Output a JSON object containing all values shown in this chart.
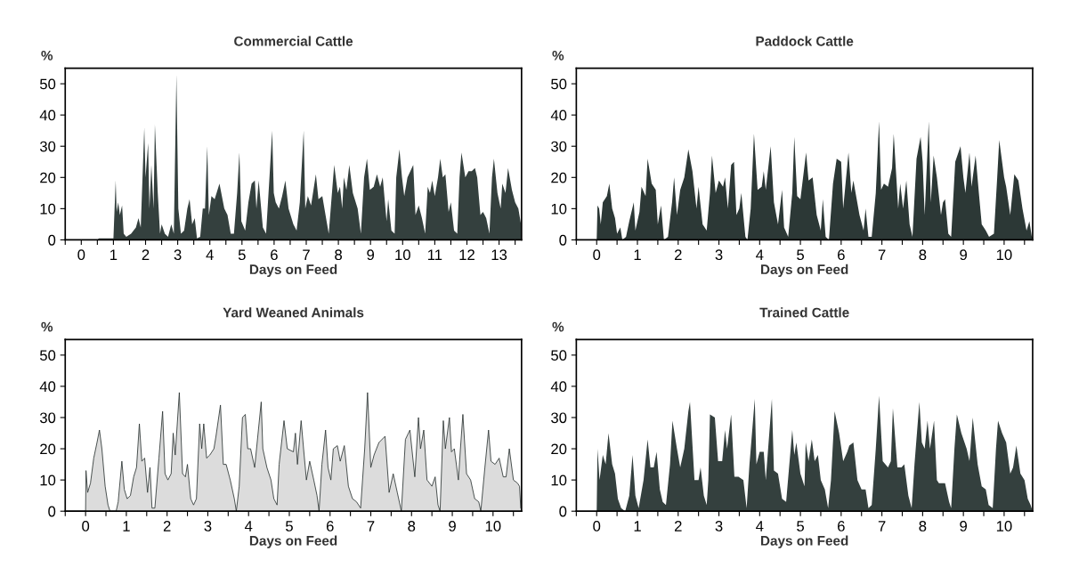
{
  "chart_data": [
    {
      "type": "area",
      "title": "Commercial Cattle",
      "xlabel": "Days on Feed",
      "ylabel": "%",
      "xlim": [
        -0.5,
        13.7
      ],
      "ylim": [
        0,
        55
      ],
      "yticks": [
        0,
        10,
        20,
        30,
        40,
        50
      ],
      "xticks": [
        {
          "value": -0.5,
          "label": null
        },
        0,
        {
          "value": 0.5,
          "label": null
        },
        1,
        {
          "value": 1.5,
          "label": null
        },
        2,
        {
          "value": 2.5,
          "label": null
        },
        3,
        {
          "value": 3.5,
          "label": null
        },
        4,
        {
          "value": 4.5,
          "label": null
        },
        5,
        {
          "value": 5.5,
          "label": null
        },
        6,
        {
          "value": 6.5,
          "label": null
        },
        7,
        {
          "value": 7.5,
          "label": null
        },
        8,
        {
          "value": 8.5,
          "label": null
        },
        9,
        {
          "value": 9.5,
          "label": null
        },
        10,
        {
          "value": 10.5,
          "label": null
        },
        11,
        {
          "value": 11.5,
          "label": null
        },
        12,
        {
          "value": 12.5,
          "label": null
        },
        13,
        {
          "value": 13.5,
          "label": null
        }
      ],
      "series": [
        {
          "color": "#34403e",
          "x": [
            -0.5,
            0.5,
            0.55,
            1.0,
            1.07,
            1.1,
            1.15,
            1.2,
            1.27,
            1.32,
            1.4,
            1.55,
            1.7,
            1.78,
            1.85,
            1.96,
            2.0,
            2.08,
            2.12,
            2.18,
            2.25,
            2.29,
            2.38,
            2.45,
            2.5,
            2.6,
            2.7,
            2.8,
            2.88,
            2.96,
            3.02,
            3.1,
            3.2,
            3.3,
            3.37,
            3.45,
            3.53,
            3.6,
            3.7,
            3.78,
            3.85,
            3.92,
            3.97,
            4.05,
            4.15,
            4.3,
            4.45,
            4.55,
            4.65,
            4.75,
            4.85,
            4.92,
            4.98,
            5.1,
            5.2,
            5.3,
            5.4,
            5.45,
            5.52,
            5.65,
            5.75,
            5.85,
            5.94,
            5.99,
            6.05,
            6.15,
            6.25,
            6.35,
            6.45,
            6.6,
            6.7,
            6.8,
            6.92,
            6.97,
            7.05,
            7.15,
            7.3,
            7.38,
            7.5,
            7.65,
            7.7,
            7.8,
            7.87,
            7.98,
            8.05,
            8.12,
            8.17,
            8.25,
            8.34,
            8.45,
            8.6,
            8.7,
            8.8,
            8.89,
            8.98,
            9.1,
            9.2,
            9.3,
            9.38,
            9.5,
            9.55,
            9.65,
            9.75,
            9.8,
            9.9,
            9.98,
            10.05,
            10.15,
            10.33,
            10.4,
            10.5,
            10.6,
            10.7,
            10.78,
            10.85,
            10.92,
            11.0,
            11.1,
            11.17,
            11.25,
            11.33,
            11.43,
            11.5,
            11.6,
            11.7,
            11.77,
            11.83,
            11.95,
            12.05,
            12.15,
            12.25,
            12.32,
            12.42,
            12.5,
            12.6,
            12.7,
            12.78,
            12.84,
            12.95,
            13.05,
            13.1,
            13.2,
            13.28,
            13.4,
            13.5,
            13.6,
            13.7
          ],
          "values": [
            0,
            0,
            0.5,
            0.5,
            19,
            9,
            12,
            8,
            11,
            2,
            1,
            2,
            4,
            7,
            4,
            36,
            20,
            31,
            10,
            24,
            10,
            37,
            15,
            2,
            5,
            2,
            1,
            5,
            2,
            53,
            10,
            2,
            3,
            10,
            13,
            5,
            7,
            0.5,
            1,
            10,
            10,
            30,
            8,
            14,
            13,
            18,
            10,
            8,
            2,
            2,
            15,
            28,
            6,
            3,
            12,
            18,
            19,
            10,
            19,
            4,
            2,
            19,
            35,
            15,
            12,
            10,
            14,
            19,
            10,
            5,
            3,
            12,
            35,
            10,
            14,
            11,
            21,
            13,
            14,
            5,
            2,
            15,
            24,
            15,
            17,
            10,
            20,
            16,
            24,
            15,
            10,
            2,
            20,
            26,
            16,
            17,
            21,
            17,
            20,
            6,
            13,
            3,
            2,
            20,
            29,
            20,
            14,
            20,
            24,
            8,
            11,
            7,
            2,
            17,
            15,
            19,
            14,
            20,
            26,
            20,
            21,
            9,
            12,
            3,
            2,
            20,
            28,
            20,
            22,
            22,
            23,
            20,
            8,
            9,
            7,
            2,
            20,
            26,
            15,
            10,
            18,
            15,
            23,
            16,
            12,
            10,
            4
          ]
        }
      ]
    },
    {
      "type": "area",
      "title": "Paddock Cattle",
      "xlabel": "Days on Feed",
      "ylabel": "%",
      "xlim": [
        -0.5,
        10.7
      ],
      "ylim": [
        0,
        55
      ],
      "yticks": [
        0,
        10,
        20,
        30,
        40,
        50
      ],
      "xticks": [
        {
          "value": -0.5,
          "label": null
        },
        0,
        {
          "value": 0.5,
          "label": null
        },
        1,
        {
          "value": 1.5,
          "label": null
        },
        2,
        {
          "value": 2.5,
          "label": null
        },
        3,
        {
          "value": 3.5,
          "label": null
        },
        4,
        {
          "value": 4.5,
          "label": null
        },
        5,
        {
          "value": 5.5,
          "label": null
        },
        6,
        {
          "value": 6.5,
          "label": null
        },
        7,
        {
          "value": 7.5,
          "label": null
        },
        8,
        {
          "value": 8.5,
          "label": null
        },
        9,
        {
          "value": 9.5,
          "label": null
        },
        10,
        {
          "value": 10.5,
          "label": null
        }
      ],
      "series": [
        {
          "color": "#2c3836",
          "x": [
            -0.5,
            0,
            0.02,
            0.06,
            0.1,
            0.15,
            0.25,
            0.31,
            0.38,
            0.45,
            0.5,
            0.58,
            0.63,
            0.72,
            0.8,
            0.91,
            0.95,
            1.05,
            1.1,
            1.2,
            1.25,
            1.35,
            1.45,
            1.5,
            1.58,
            1.65,
            1.75,
            1.85,
            1.9,
            1.97,
            2.05,
            2.15,
            2.25,
            2.35,
            2.45,
            2.5,
            2.6,
            2.7,
            2.78,
            2.83,
            2.92,
            3.0,
            3.1,
            3.15,
            3.22,
            3.3,
            3.37,
            3.43,
            3.5,
            3.55,
            3.65,
            3.7,
            3.78,
            3.86,
            3.95,
            4.05,
            4.1,
            4.15,
            4.27,
            4.35,
            4.45,
            4.55,
            4.6,
            4.7,
            4.8,
            4.85,
            4.92,
            5.0,
            5.14,
            5.2,
            5.3,
            5.4,
            5.5,
            5.55,
            5.62,
            5.7,
            5.8,
            5.89,
            6.0,
            6.05,
            6.18,
            6.25,
            6.3,
            6.45,
            6.55,
            6.6,
            6.67,
            6.75,
            6.85,
            6.93,
            6.98,
            7.05,
            7.15,
            7.25,
            7.29,
            7.4,
            7.45,
            7.52,
            7.6,
            7.68,
            7.75,
            7.85,
            7.95,
            8.0,
            8.05,
            8.15,
            8.2,
            8.27,
            8.35,
            8.45,
            8.5,
            8.55,
            8.63,
            8.7,
            8.8,
            8.93,
            9.0,
            9.05,
            9.15,
            9.2,
            9.3,
            9.38,
            9.45,
            9.55,
            9.63,
            9.75,
            9.83,
            9.88,
            10.0,
            10.05,
            10.15,
            10.25,
            10.35,
            10.45,
            10.55,
            10.62,
            10.68,
            10.7
          ],
          "values": [
            0,
            0,
            11,
            10,
            5,
            12,
            14,
            18,
            10,
            7,
            2,
            4,
            0,
            1,
            6,
            12,
            3,
            9,
            17,
            14,
            26,
            18,
            16,
            5,
            11,
            0,
            1,
            12,
            20,
            8,
            16,
            20,
            29,
            22,
            10,
            17,
            5,
            3,
            15,
            27,
            15,
            19,
            17,
            20,
            10,
            24,
            25,
            8,
            10,
            15,
            1,
            0,
            10,
            34,
            16,
            17,
            22,
            16,
            30,
            12,
            5,
            16,
            4,
            1,
            15,
            33,
            14,
            13,
            28,
            19,
            20,
            8,
            3,
            13,
            1,
            0,
            18,
            26,
            25,
            10,
            28,
            15,
            19,
            8,
            3,
            10,
            1,
            1,
            15,
            38,
            16,
            18,
            17,
            23,
            34,
            10,
            18,
            10,
            19,
            5,
            1,
            26,
            33,
            25,
            8,
            38,
            12,
            27,
            20,
            8,
            12,
            13,
            2,
            1,
            25,
            30,
            20,
            15,
            28,
            17,
            27,
            15,
            5,
            3,
            1,
            2,
            20,
            32,
            20,
            17,
            8,
            21,
            19,
            10,
            3,
            6,
            1,
            1
          ]
        }
      ]
    },
    {
      "type": "area",
      "title": "Yard Weaned Animals",
      "xlabel": "Days on Feed",
      "ylabel": "%",
      "xlim": [
        -0.5,
        10.7
      ],
      "ylim": [
        0,
        55
      ],
      "yticks": [
        0,
        10,
        20,
        30,
        40,
        50
      ],
      "xticks": [
        {
          "value": -0.5,
          "label": null
        },
        0,
        {
          "value": 0.5,
          "label": null
        },
        1,
        {
          "value": 1.5,
          "label": null
        },
        2,
        {
          "value": 2.5,
          "label": null
        },
        3,
        {
          "value": 3.5,
          "label": null
        },
        4,
        {
          "value": 4.5,
          "label": null
        },
        5,
        {
          "value": 5.5,
          "label": null
        },
        6,
        {
          "value": 6.5,
          "label": null
        },
        7,
        {
          "value": 7.5,
          "label": null
        },
        8,
        {
          "value": 8.5,
          "label": null
        },
        9,
        {
          "value": 9.5,
          "label": null
        },
        10,
        {
          "value": 10.5,
          "label": null
        }
      ],
      "series": [
        {
          "color": "#dcdcdc",
          "x": [
            -0.5,
            0,
            0.01,
            0.05,
            0.12,
            0.2,
            0.28,
            0.34,
            0.4,
            0.48,
            0.55,
            0.6,
            0.75,
            0.8,
            0.89,
            0.95,
            1.02,
            1.1,
            1.18,
            1.25,
            1.32,
            1.38,
            1.45,
            1.52,
            1.58,
            1.63,
            1.7,
            1.8,
            1.89,
            1.95,
            2.02,
            2.1,
            2.15,
            2.2,
            2.3,
            2.38,
            2.45,
            2.5,
            2.58,
            2.65,
            2.72,
            2.8,
            2.85,
            2.9,
            2.97,
            3.05,
            3.15,
            3.2,
            3.31,
            3.38,
            3.45,
            3.55,
            3.65,
            3.7,
            3.77,
            3.85,
            3.92,
            3.98,
            4.05,
            4.15,
            4.31,
            4.35,
            4.45,
            4.55,
            4.62,
            4.7,
            4.75,
            4.87,
            4.95,
            5.1,
            5.15,
            5.2,
            5.29,
            5.35,
            5.42,
            5.5,
            5.6,
            5.68,
            5.73,
            5.8,
            5.89,
            5.95,
            6.02,
            6.08,
            6.18,
            6.25,
            6.35,
            6.45,
            6.55,
            6.65,
            6.75,
            6.85,
            6.92,
            7.0,
            7.08,
            7.2,
            7.35,
            7.45,
            7.55,
            7.65,
            7.75,
            7.85,
            7.96,
            8.08,
            8.17,
            8.22,
            8.3,
            8.38,
            8.5,
            8.58,
            8.65,
            8.7,
            8.78,
            8.83,
            8.93,
            8.98,
            9.05,
            9.15,
            9.2,
            9.26,
            9.35,
            9.45,
            9.55,
            9.65,
            9.7,
            9.8,
            9.89,
            9.95,
            10.05,
            10.15,
            10.25,
            10.32,
            10.4,
            10.5,
            10.6,
            10.65,
            10.68
          ],
          "values": [
            0,
            0,
            13,
            6,
            9,
            17,
            22,
            26,
            20,
            8,
            2,
            0,
            0,
            3,
            16,
            7,
            4,
            5,
            11,
            14,
            28,
            16,
            17,
            6,
            14,
            1,
            1,
            17,
            32,
            12,
            10,
            12,
            25,
            18,
            38,
            12,
            11,
            15,
            4,
            2,
            4,
            28,
            20,
            28,
            17,
            18,
            20,
            24,
            34,
            15,
            15,
            10,
            4,
            0,
            8,
            30,
            31,
            20,
            20,
            14,
            35,
            20,
            14,
            10,
            4,
            2,
            15,
            29,
            20,
            19,
            25,
            15,
            29,
            20,
            10,
            16,
            10,
            5,
            0,
            15,
            26,
            14,
            10,
            20,
            21,
            16,
            21,
            8,
            4,
            3,
            1,
            20,
            38,
            14,
            18,
            22,
            24,
            6,
            12,
            6,
            0,
            23,
            26,
            11,
            30,
            20,
            26,
            10,
            8,
            11,
            2,
            0,
            29,
            20,
            30,
            19,
            20,
            10,
            20,
            31,
            12,
            10,
            4,
            3,
            0,
            14,
            26,
            16,
            15,
            17,
            11,
            11,
            20,
            10,
            9,
            8,
            1
          ]
        }
      ]
    },
    {
      "type": "area",
      "title": "Trained Cattle",
      "xlabel": "Days on Feed",
      "ylabel": "%",
      "xlim": [
        -0.5,
        10.7
      ],
      "ylim": [
        0,
        55
      ],
      "yticks": [
        0,
        10,
        20,
        30,
        40,
        50
      ],
      "xticks": [
        {
          "value": -0.5,
          "label": null
        },
        0,
        {
          "value": 0.5,
          "label": null
        },
        1,
        {
          "value": 1.5,
          "label": null
        },
        2,
        {
          "value": 2.5,
          "label": null
        },
        3,
        {
          "value": 3.5,
          "label": null
        },
        4,
        {
          "value": 4.5,
          "label": null
        },
        5,
        {
          "value": 5.5,
          "label": null
        },
        6,
        {
          "value": 6.5,
          "label": null
        },
        7,
        {
          "value": 7.5,
          "label": null
        },
        8,
        {
          "value": 8.5,
          "label": null
        },
        9,
        {
          "value": 9.5,
          "label": null
        },
        10,
        {
          "value": 10.5,
          "label": null
        }
      ],
      "series": [
        {
          "color": "#34403e",
          "x": [
            -0.5,
            0,
            0.02,
            0.07,
            0.15,
            0.22,
            0.29,
            0.38,
            0.45,
            0.52,
            0.6,
            0.7,
            0.8,
            0.88,
            0.95,
            1.03,
            1.15,
            1.25,
            1.32,
            1.4,
            1.47,
            1.55,
            1.62,
            1.7,
            1.8,
            1.86,
            1.97,
            2.05,
            2.15,
            2.25,
            2.29,
            2.4,
            2.5,
            2.55,
            2.63,
            2.7,
            2.74,
            2.78,
            2.9,
            2.98,
            3.08,
            3.15,
            3.2,
            3.3,
            3.38,
            3.48,
            3.6,
            3.68,
            3.75,
            3.88,
            3.92,
            4.0,
            4.1,
            4.15,
            4.3,
            4.35,
            4.45,
            4.55,
            4.65,
            4.8,
            4.85,
            4.9,
            5.0,
            5.1,
            5.13,
            5.2,
            5.28,
            5.35,
            5.43,
            5.5,
            5.6,
            5.68,
            5.75,
            5.84,
            5.95,
            6.05,
            6.15,
            6.2,
            6.3,
            6.4,
            6.5,
            6.6,
            6.67,
            6.75,
            6.85,
            6.93,
            7.02,
            7.15,
            7.22,
            7.27,
            7.38,
            7.48,
            7.55,
            7.65,
            7.73,
            7.8,
            7.92,
            7.98,
            8.05,
            8.12,
            8.18,
            8.28,
            8.35,
            8.4,
            8.55,
            8.65,
            8.7,
            8.78,
            8.84,
            8.95,
            9.08,
            9.15,
            9.23,
            9.35,
            9.45,
            9.55,
            9.62,
            9.72,
            9.8,
            9.85,
            9.95,
            10.05,
            10.15,
            10.22,
            10.3,
            10.4,
            10.5,
            10.58,
            10.65,
            10.7
          ],
          "values": [
            0,
            0,
            20,
            10,
            18,
            15,
            25,
            15,
            12,
            4,
            1,
            0,
            5,
            18,
            5,
            1,
            10,
            23,
            14,
            14,
            19,
            7,
            3,
            2,
            15,
            29,
            20,
            14,
            20,
            32,
            35,
            10,
            10,
            14,
            5,
            2,
            10,
            31,
            30,
            16,
            16,
            26,
            20,
            31,
            11,
            11,
            10,
            1,
            15,
            36,
            15,
            19,
            19,
            10,
            36,
            13,
            12,
            4,
            3,
            26,
            18,
            22,
            12,
            8,
            22,
            16,
            23,
            16,
            18,
            10,
            7,
            1,
            10,
            32,
            25,
            16,
            19,
            21,
            22,
            10,
            7,
            7,
            1,
            2,
            20,
            37,
            16,
            14,
            16,
            33,
            14,
            14,
            15,
            5,
            1,
            15,
            35,
            22,
            20,
            29,
            20,
            29,
            10,
            9,
            9,
            3,
            1,
            20,
            31,
            25,
            20,
            16,
            30,
            15,
            8,
            7,
            2,
            1,
            20,
            29,
            25,
            22,
            12,
            14,
            21,
            12,
            10,
            4,
            2,
            0
          ]
        }
      ]
    }
  ]
}
